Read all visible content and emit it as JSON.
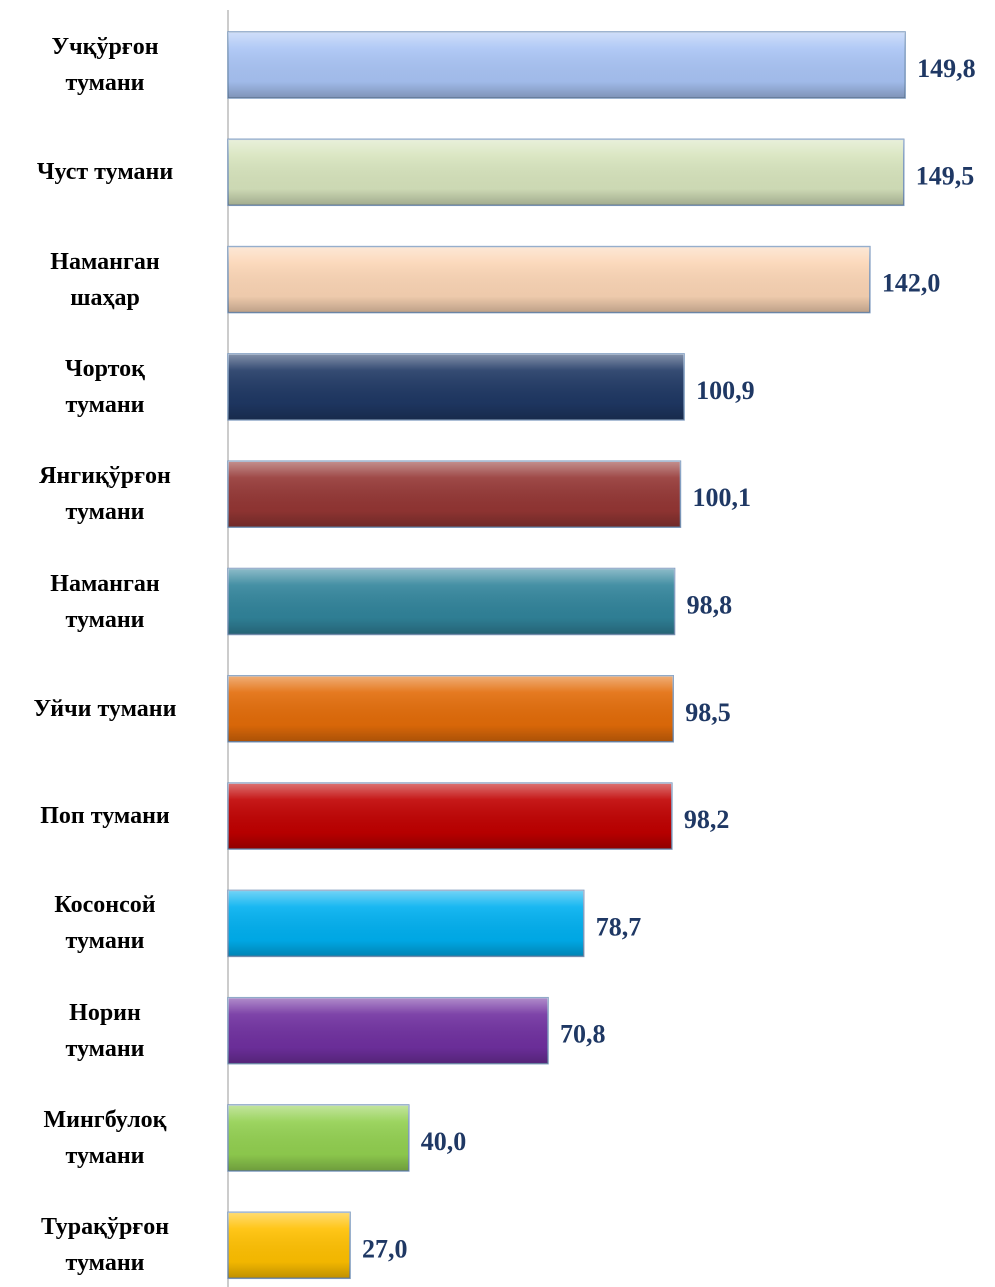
{
  "chart_data": {
    "type": "barh",
    "categories": [
      "Учқўрғон\nтумани",
      "Чуст тумани",
      "Наманган\nшаҳар",
      "Чортоқ\nтумани",
      "Янгиқўрғон\nтумани",
      "Наманган\nтумани",
      "Уйчи тумани",
      "Поп тумани",
      "Косонсой\nтумани",
      "Норин\nтумани",
      "Мингбулоқ\nтумани",
      "Турақўрғон\nтумани"
    ],
    "values": [
      149.8,
      149.5,
      142.0,
      100.9,
      100.1,
      98.8,
      98.5,
      98.2,
      78.7,
      70.8,
      40.0,
      27.0
    ],
    "value_labels": [
      "149,8",
      "149,5",
      "142,0",
      "100,9",
      "100,1",
      "98,8",
      "98,5",
      "98,2",
      "78,7",
      "70,8",
      "40,0",
      "27,0"
    ],
    "colors": [
      "#a9c4f5",
      "#d7e4bd",
      "#fbd5b5",
      "#1f3864",
      "#943634",
      "#31849b",
      "#e36c09",
      "#c00000",
      "#00b0f0",
      "#7030a0",
      "#92d050",
      "#ffc000"
    ],
    "xlim": [
      0,
      150
    ]
  }
}
